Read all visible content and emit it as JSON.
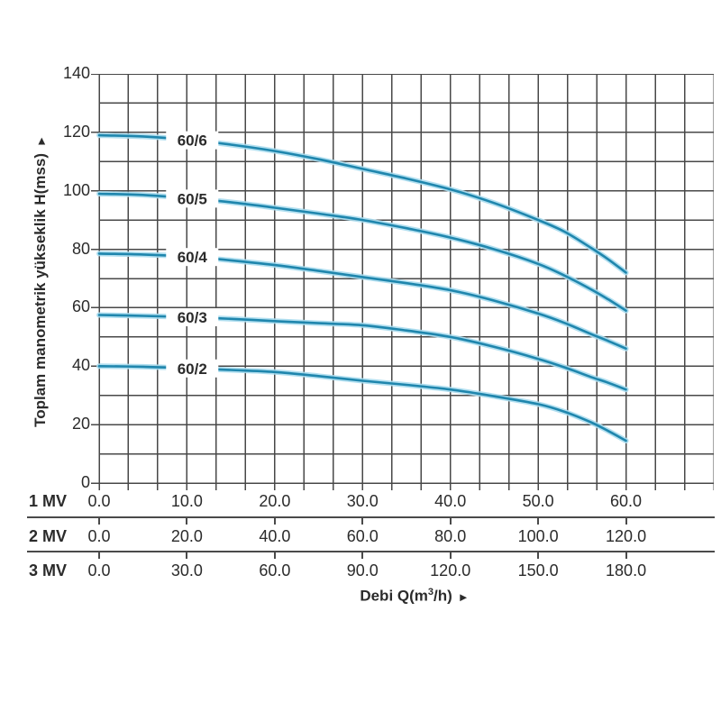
{
  "chart_data": {
    "type": "line",
    "ylabel": "Toplam manometrik yükseklik H(mss)",
    "ylabel_arrow": "►",
    "xlabel_prefix": "Debi Q(m",
    "xlabel_sup": "3",
    "xlabel_suffix": "/h)",
    "xlabel_arrow": "►",
    "ylim": [
      0,
      140
    ],
    "y_grid_step": 10,
    "y_ticks": [
      "0",
      "20",
      "40",
      "60",
      "80",
      "100",
      "120",
      "140"
    ],
    "x_range_1mv": {
      "min": 0,
      "max": 70,
      "grid_step": 3.3333,
      "labeled_max": 60
    },
    "grid_on": true,
    "x_axes": [
      {
        "name": "1 MV",
        "ticks": [
          "0.0",
          "10.0",
          "20.0",
          "30.0",
          "40.0",
          "50.0",
          "60.0"
        ]
      },
      {
        "name": "2 MV",
        "ticks": [
          "0.0",
          "20.0",
          "40.0",
          "60.0",
          "80.0",
          "100.0",
          "120.0"
        ]
      },
      {
        "name": "3 MV",
        "ticks": [
          "0.0",
          "30.0",
          "60.0",
          "90.0",
          "120.0",
          "150.0",
          "180.0"
        ]
      }
    ],
    "series_label_q": 10.6,
    "series": [
      {
        "name": "60/6",
        "points": [
          [
            0,
            119
          ],
          [
            5,
            118.6
          ],
          [
            10,
            117.5
          ],
          [
            15,
            115.8
          ],
          [
            20,
            113.6
          ],
          [
            25,
            110.8
          ],
          [
            30,
            107.5
          ],
          [
            35,
            104.2
          ],
          [
            40,
            100.5
          ],
          [
            45,
            95.8
          ],
          [
            50,
            90
          ],
          [
            53,
            86
          ],
          [
            56,
            80.5
          ],
          [
            58,
            76.5
          ],
          [
            60,
            72
          ]
        ]
      },
      {
        "name": "60/5",
        "points": [
          [
            0,
            99
          ],
          [
            5,
            98.6
          ],
          [
            10,
            97.5
          ],
          [
            15,
            96.1
          ],
          [
            20,
            94.2
          ],
          [
            25,
            92.2
          ],
          [
            30,
            90
          ],
          [
            35,
            87.2
          ],
          [
            40,
            84
          ],
          [
            45,
            80
          ],
          [
            50,
            75
          ],
          [
            53,
            71
          ],
          [
            56,
            66.3
          ],
          [
            58,
            62.8
          ],
          [
            60,
            59
          ]
        ]
      },
      {
        "name": "60/4",
        "points": [
          [
            0,
            78.5
          ],
          [
            5,
            78.2
          ],
          [
            10,
            77.5
          ],
          [
            15,
            76.2
          ],
          [
            20,
            74.6
          ],
          [
            25,
            72.6
          ],
          [
            30,
            70.5
          ],
          [
            35,
            68.4
          ],
          [
            40,
            66
          ],
          [
            45,
            62.4
          ],
          [
            50,
            58
          ],
          [
            53,
            54.8
          ],
          [
            56,
            51
          ],
          [
            58,
            48.6
          ],
          [
            60,
            46
          ]
        ]
      },
      {
        "name": "60/3",
        "points": [
          [
            0,
            57.5
          ],
          [
            5,
            57.2
          ],
          [
            10,
            56.8
          ],
          [
            15,
            56.2
          ],
          [
            20,
            55.4
          ],
          [
            25,
            54.7
          ],
          [
            30,
            54
          ],
          [
            35,
            52.2
          ],
          [
            40,
            50
          ],
          [
            45,
            46.6
          ],
          [
            50,
            42.5
          ],
          [
            53,
            39.6
          ],
          [
            56,
            36.3
          ],
          [
            58,
            34.3
          ],
          [
            60,
            32
          ]
        ]
      },
      {
        "name": "60/2",
        "points": [
          [
            0,
            40
          ],
          [
            5,
            39.8
          ],
          [
            10,
            39.3
          ],
          [
            15,
            38.7
          ],
          [
            20,
            38
          ],
          [
            25,
            36.6
          ],
          [
            30,
            35
          ],
          [
            35,
            33.6
          ],
          [
            40,
            32
          ],
          [
            45,
            29.7
          ],
          [
            50,
            27
          ],
          [
            53,
            24.4
          ],
          [
            56,
            20.8
          ],
          [
            58,
            17.8
          ],
          [
            60,
            14.5
          ]
        ]
      }
    ],
    "colors": {
      "curve": "#1f86ad",
      "curve_glow": "#a9dcee",
      "grid": "#484848",
      "text": "#2b2b2b",
      "label_halo": "#ffffff"
    }
  }
}
